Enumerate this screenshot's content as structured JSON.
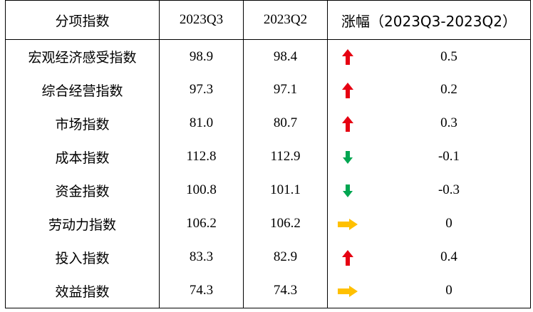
{
  "header": {
    "name": "分项指数",
    "q3": "2023Q3",
    "q2": "2023Q2",
    "change": "涨幅（2023Q3-2023Q2）"
  },
  "colors": {
    "up": "#e60012",
    "down": "#00a651",
    "flat": "#ffc000"
  },
  "rows": [
    {
      "name": "宏观经济感受指数",
      "q3": "98.9",
      "q2": "98.4",
      "trend": "up",
      "trend_icon": "red-up-arrow-icon",
      "change": "0.5"
    },
    {
      "name": "综合经营指数",
      "q3": "97.3",
      "q2": "97.1",
      "trend": "up",
      "trend_icon": "red-up-arrow-icon",
      "change": "0.2"
    },
    {
      "name": "市场指数",
      "q3": "81.0",
      "q2": "80.7",
      "trend": "up",
      "trend_icon": "red-up-arrow-icon",
      "change": "0.3"
    },
    {
      "name": "成本指数",
      "q3": "112.8",
      "q2": "112.9",
      "trend": "down",
      "trend_icon": "green-down-arrow-icon",
      "change": "-0.1"
    },
    {
      "name": "资金指数",
      "q3": "100.8",
      "q2": "101.1",
      "trend": "down",
      "trend_icon": "green-down-arrow-icon",
      "change": "-0.3"
    },
    {
      "name": "劳动力指数",
      "q3": "106.2",
      "q2": "106.2",
      "trend": "flat",
      "trend_icon": "yellow-right-arrow-icon",
      "change": "0"
    },
    {
      "name": "投入指数",
      "q3": "83.3",
      "q2": "82.9",
      "trend": "up",
      "trend_icon": "red-up-arrow-icon",
      "change": "0.4"
    },
    {
      "name": "效益指数",
      "q3": "74.3",
      "q2": "74.3",
      "trend": "flat",
      "trend_icon": "yellow-right-arrow-icon",
      "change": "0"
    }
  ]
}
